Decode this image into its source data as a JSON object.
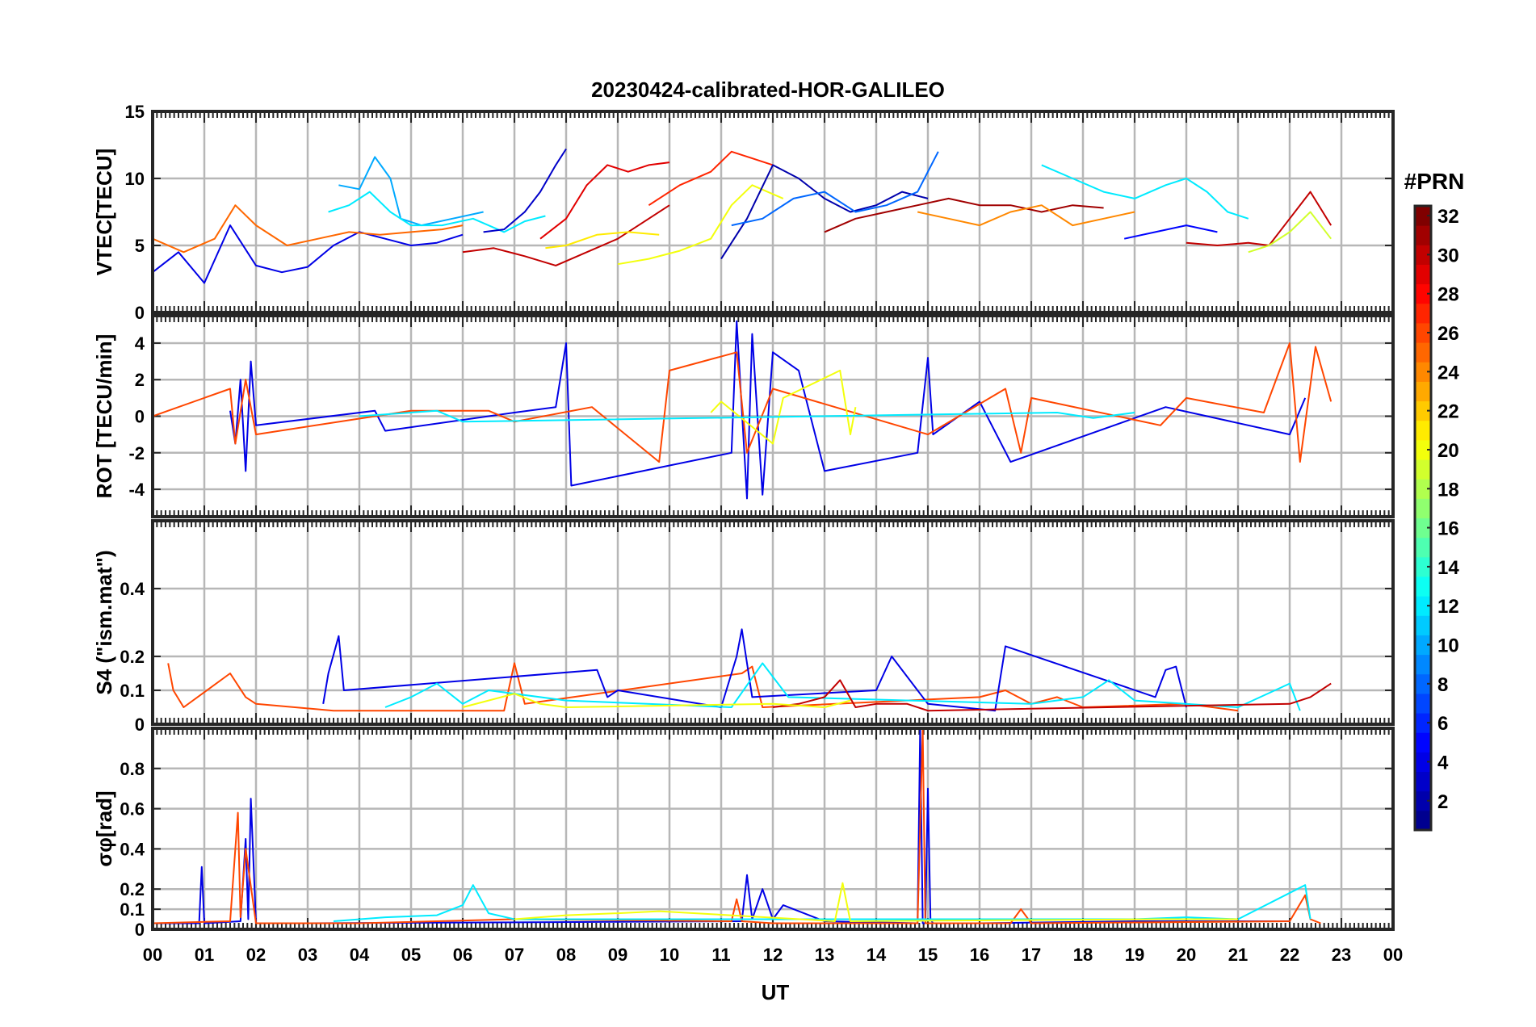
{
  "chart_data": {
    "type": "line",
    "title": "20230424-calibrated-HOR-GALILEO",
    "xlabel": "UT",
    "x_ticks": [
      "00",
      "01",
      "02",
      "03",
      "04",
      "05",
      "06",
      "07",
      "08",
      "09",
      "10",
      "11",
      "12",
      "13",
      "14",
      "15",
      "16",
      "17",
      "18",
      "19",
      "20",
      "21",
      "22",
      "23",
      "00"
    ],
    "xlim": [
      0,
      24
    ],
    "grid": true,
    "colorbar": {
      "label": "#PRN",
      "range": [
        1,
        32
      ],
      "ticks": [
        "2",
        "4",
        "6",
        "8",
        "10",
        "12",
        "14",
        "16",
        "18",
        "20",
        "22",
        "24",
        "26",
        "28",
        "30",
        "32"
      ],
      "colormap": [
        "#00008f",
        "#0000ff",
        "#0080ff",
        "#00ffff",
        "#80ff80",
        "#ffff00",
        "#ff8000",
        "#ff0000",
        "#800000"
      ]
    },
    "panels": [
      {
        "ylabel": "VTEC[TECU]",
        "ylim": [
          0,
          15
        ],
        "yticks": [
          "0",
          "5",
          "10",
          "15"
        ],
        "ytick_values": [
          0,
          5,
          10,
          15
        ],
        "series": [
          {
            "prn": 4,
            "x": [
              0.0,
              0.5,
              1.0,
              1.5,
              2.0,
              2.5,
              3.0,
              3.5,
              4.0,
              4.5,
              5.0,
              5.5,
              6.0
            ],
            "y": [
              3.0,
              4.5,
              2.2,
              6.5,
              3.5,
              3.0,
              3.4,
              5.0,
              6.0,
              5.5,
              5.0,
              5.2,
              5.8
            ]
          },
          {
            "prn": 10,
            "x": [
              3.6,
              4.0,
              4.3,
              4.6,
              4.8,
              5.2,
              5.8,
              6.4
            ],
            "y": [
              9.5,
              9.2,
              11.6,
              10.0,
              7.0,
              6.5,
              7.0,
              7.5
            ]
          },
          {
            "prn": 12,
            "x": [
              3.4,
              3.8,
              4.2,
              4.6,
              5.0,
              5.6,
              6.2,
              6.8,
              7.2,
              7.6
            ],
            "y": [
              7.5,
              8.0,
              9.0,
              7.5,
              6.5,
              6.5,
              7.0,
              6.0,
              6.8,
              7.2
            ]
          },
          {
            "prn": 3,
            "x": [
              6.4,
              6.8,
              7.2,
              7.5,
              7.8,
              8.0
            ],
            "y": [
              6.0,
              6.2,
              7.5,
              9.0,
              11.0,
              12.2
            ]
          },
          {
            "prn": 25,
            "x": [
              0.0,
              0.6,
              1.2,
              1.6,
              2.0,
              2.6,
              3.2,
              3.8,
              4.4,
              5.0,
              5.6,
              6.0
            ],
            "y": [
              5.5,
              4.5,
              5.5,
              8.0,
              6.5,
              5.0,
              5.5,
              6.0,
              5.8,
              6.0,
              6.2,
              6.5
            ]
          },
          {
            "prn": 30,
            "x": [
              6.0,
              6.6,
              7.2,
              7.8,
              8.4,
              9.0,
              9.6,
              10.0
            ],
            "y": [
              4.5,
              4.8,
              4.2,
              3.5,
              4.5,
              5.5,
              7.0,
              8.0
            ]
          },
          {
            "prn": 29,
            "x": [
              7.5,
              8.0,
              8.4,
              8.8,
              9.2,
              9.6,
              10.0
            ],
            "y": [
              5.5,
              7.0,
              9.5,
              11.0,
              10.5,
              11.0,
              11.2
            ]
          },
          {
            "prn": 21,
            "x": [
              7.6,
              8.0,
              8.6,
              9.2,
              9.8
            ],
            "y": [
              4.8,
              5.0,
              5.8,
              6.0,
              5.8
            ]
          },
          {
            "prn": 20,
            "x": [
              9.0,
              9.6,
              10.2,
              10.8,
              11.2,
              11.6,
              12.2
            ],
            "y": [
              3.6,
              4.0,
              4.6,
              5.5,
              8.0,
              9.5,
              8.5
            ]
          },
          {
            "prn": 27,
            "x": [
              9.6,
              10.2,
              10.8,
              11.2,
              11.6,
              12.0
            ],
            "y": [
              8.0,
              9.5,
              10.5,
              12.0,
              11.5,
              11.0
            ]
          },
          {
            "prn": 2,
            "x": [
              11.0,
              11.5,
              12.0,
              12.5,
              13.0,
              13.5,
              14.0,
              14.5,
              15.0
            ],
            "y": [
              4.0,
              7.0,
              11.0,
              10.0,
              8.5,
              7.5,
              8.0,
              9.0,
              8.5
            ]
          },
          {
            "prn": 8,
            "x": [
              11.2,
              11.8,
              12.4,
              13.0,
              13.6,
              14.2,
              14.8,
              15.2
            ],
            "y": [
              6.5,
              7.0,
              8.5,
              9.0,
              7.5,
              8.0,
              9.0,
              12.0
            ]
          },
          {
            "prn": 31,
            "x": [
              13.0,
              13.6,
              14.2,
              14.8,
              15.4,
              16.0,
              16.6,
              17.2,
              17.8,
              18.4
            ],
            "y": [
              6.0,
              7.0,
              7.5,
              8.0,
              8.5,
              8.0,
              8.0,
              7.5,
              8.0,
              7.8
            ]
          },
          {
            "prn": 24,
            "x": [
              14.8,
              15.4,
              16.0,
              16.6,
              17.2,
              17.8,
              18.4,
              19.0
            ],
            "y": [
              7.5,
              7.0,
              6.5,
              7.5,
              8.0,
              6.5,
              7.0,
              7.5
            ]
          },
          {
            "prn": 12,
            "x": [
              17.2,
              17.8,
              18.4,
              19.0,
              19.6,
              20.0,
              20.4,
              20.8,
              21.2
            ],
            "y": [
              11.0,
              10.0,
              9.0,
              8.5,
              9.5,
              10.0,
              9.0,
              7.5,
              7.0
            ]
          },
          {
            "prn": 5,
            "x": [
              18.8,
              19.4,
              20.0,
              20.6
            ],
            "y": [
              5.5,
              6.0,
              6.5,
              6.0
            ]
          },
          {
            "prn": 30,
            "x": [
              20.0,
              20.6,
              21.2,
              21.6,
              22.0,
              22.4,
              22.8
            ],
            "y": [
              5.2,
              5.0,
              5.2,
              5.0,
              7.0,
              9.0,
              6.5
            ]
          },
          {
            "prn": 19,
            "x": [
              21.2,
              21.6,
              22.0,
              22.4,
              22.8
            ],
            "y": [
              4.5,
              5.0,
              6.0,
              7.5,
              5.5
            ]
          }
        ]
      },
      {
        "ylabel": "ROT [TECU/min]",
        "ylim": [
          -5.5,
          5.5
        ],
        "yticks": [
          "-4",
          "-2",
          "0",
          "2",
          "4"
        ],
        "ytick_values": [
          -4,
          -2,
          0,
          2,
          4
        ],
        "series": [
          {
            "prn": 4,
            "x": [
              1.5,
              1.6,
              1.7,
              1.8,
              1.9,
              2.0,
              4.3,
              4.5,
              7.0,
              7.8,
              8.0,
              8.1,
              11.2,
              11.3,
              11.5,
              11.6,
              11.8,
              12.0,
              12.5,
              13.0,
              14.8,
              15.0,
              15.1,
              16.0,
              16.6,
              19.6,
              22.0,
              22.3
            ],
            "y": [
              0.3,
              -1.5,
              2.0,
              -3.0,
              3.0,
              -0.5,
              0.3,
              -0.8,
              0.2,
              0.5,
              4.0,
              -3.8,
              -2.0,
              5.2,
              -4.5,
              4.5,
              -4.3,
              3.5,
              2.5,
              -3.0,
              -2.0,
              3.2,
              -1.0,
              0.8,
              -2.5,
              0.5,
              -1.0,
              1.0
            ]
          },
          {
            "prn": 26,
            "x": [
              0.0,
              1.5,
              1.6,
              1.8,
              2.0,
              5.0,
              6.5,
              7.0,
              8.5,
              9.8,
              10.0,
              11.3,
              11.5,
              12.0,
              15.0,
              16.5,
              16.8,
              17.0,
              19.5,
              20.0,
              21.5,
              22.0,
              22.2,
              22.5,
              22.8
            ],
            "y": [
              0.0,
              1.5,
              -1.5,
              2.0,
              -1.0,
              0.3,
              0.3,
              -0.3,
              0.5,
              -2.5,
              2.5,
              3.5,
              -2.0,
              1.5,
              -1.0,
              1.5,
              -2.0,
              1.0,
              -0.5,
              1.0,
              0.2,
              4.0,
              -2.5,
              3.8,
              0.8
            ]
          },
          {
            "prn": 20,
            "x": [
              10.8,
              11.0,
              12.0,
              12.2,
              13.3,
              13.5,
              13.6
            ],
            "y": [
              0.2,
              0.8,
              -1.5,
              1.0,
              2.5,
              -1.0,
              0.5
            ]
          },
          {
            "prn": 12,
            "x": [
              4.0,
              5.5,
              6.0,
              17.5,
              18.2,
              19.0
            ],
            "y": [
              0.0,
              0.3,
              -0.3,
              0.2,
              -0.1,
              0.2
            ]
          }
        ]
      },
      {
        "ylabel": "S4 (\"ism.mat\")",
        "ylim": [
          0,
          0.6
        ],
        "yticks": [
          "0",
          "0.1",
          "0.2",
          "0.4"
        ],
        "ytick_values": [
          0,
          0.1,
          0.2,
          0.4
        ],
        "series": [
          {
            "prn": 26,
            "x": [
              0.3,
              0.4,
              0.6,
              1.5,
              1.8,
              2.0,
              3.5,
              6.8,
              7.0,
              7.2,
              11.4,
              11.6,
              11.8,
              16.0,
              16.5,
              17.0,
              17.5,
              18.0,
              20.0,
              21.0
            ],
            "y": [
              0.18,
              0.1,
              0.05,
              0.15,
              0.08,
              0.06,
              0.04,
              0.04,
              0.18,
              0.06,
              0.15,
              0.17,
              0.05,
              0.08,
              0.1,
              0.06,
              0.08,
              0.05,
              0.06,
              0.04
            ]
          },
          {
            "prn": 4,
            "x": [
              3.3,
              3.4,
              3.6,
              3.7,
              8.6,
              8.8,
              9.0,
              11.0,
              11.3,
              11.4,
              11.6,
              14.0,
              14.3,
              15.0,
              16.3,
              16.5,
              19.4,
              19.6,
              19.8,
              20.0
            ],
            "y": [
              0.06,
              0.15,
              0.26,
              0.1,
              0.16,
              0.08,
              0.1,
              0.05,
              0.2,
              0.28,
              0.08,
              0.1,
              0.2,
              0.06,
              0.04,
              0.23,
              0.08,
              0.16,
              0.17,
              0.05
            ]
          },
          {
            "prn": 12,
            "x": [
              4.5,
              5.0,
              5.5,
              6.0,
              6.5,
              8.0,
              11.2,
              11.8,
              12.3,
              17.0,
              18.0,
              18.5,
              19.0,
              21.0,
              22.0,
              22.2
            ],
            "y": [
              0.05,
              0.08,
              0.12,
              0.06,
              0.1,
              0.07,
              0.05,
              0.18,
              0.08,
              0.06,
              0.08,
              0.13,
              0.07,
              0.05,
              0.12,
              0.04
            ]
          },
          {
            "prn": 30,
            "x": [
              12.0,
              12.5,
              13.0,
              13.3,
              13.6,
              14.0,
              14.6,
              15.0,
              22.0,
              22.4,
              22.8
            ],
            "y": [
              0.05,
              0.06,
              0.08,
              0.13,
              0.05,
              0.06,
              0.06,
              0.04,
              0.06,
              0.08,
              0.12
            ]
          },
          {
            "prn": 20,
            "x": [
              6.0,
              6.5,
              7.0,
              7.5,
              8.0,
              12.0,
              13.0,
              13.5
            ],
            "y": [
              0.05,
              0.07,
              0.09,
              0.06,
              0.05,
              0.06,
              0.05,
              0.07
            ]
          }
        ]
      },
      {
        "ylabel": "σφ[rad]",
        "ylim": [
          0,
          1.0
        ],
        "yticks": [
          "0",
          "0.1",
          "0.2",
          "0.4",
          "0.6",
          "0.8"
        ],
        "ytick_values": [
          0,
          0.1,
          0.2,
          0.4,
          0.6,
          0.8
        ],
        "series": [
          {
            "prn": 4,
            "x": [
              0.0,
              0.9,
              0.95,
              1.0,
              1.7,
              1.8,
              1.85,
              1.9,
              2.0,
              3.0,
              11.4,
              11.5,
              11.6,
              11.8,
              12.0,
              12.2,
              13.0,
              14.8,
              14.85,
              14.9,
              14.95,
              15.0,
              15.05,
              15.1,
              16.0,
              19.0,
              22.0
            ],
            "y": [
              0.03,
              0.03,
              0.31,
              0.03,
              0.04,
              0.45,
              0.05,
              0.65,
              0.03,
              0.03,
              0.04,
              0.27,
              0.05,
              0.2,
              0.05,
              0.12,
              0.04,
              0.03,
              1.0,
              0.03,
              0.03,
              0.7,
              0.05,
              0.03,
              0.03,
              0.04,
              0.04
            ]
          },
          {
            "prn": 26,
            "x": [
              0.0,
              1.5,
              1.65,
              1.7,
              1.8,
              2.0,
              4.0,
              7.0,
              11.2,
              11.3,
              11.4,
              12.0,
              14.8,
              14.9,
              14.95,
              15.0,
              16.6,
              16.8,
              17.0,
              22.0,
              22.3,
              22.4,
              22.6
            ],
            "y": [
              0.03,
              0.04,
              0.58,
              0.06,
              0.4,
              0.03,
              0.03,
              0.05,
              0.04,
              0.15,
              0.04,
              0.03,
              0.03,
              1.0,
              0.03,
              0.03,
              0.03,
              0.1,
              0.03,
              0.04,
              0.17,
              0.05,
              0.03
            ]
          },
          {
            "prn": 12,
            "x": [
              3.5,
              4.5,
              5.5,
              6.0,
              6.2,
              6.5,
              7.0,
              19.0,
              20.0,
              21.0,
              22.3,
              22.4
            ],
            "y": [
              0.04,
              0.06,
              0.07,
              0.12,
              0.22,
              0.08,
              0.05,
              0.05,
              0.06,
              0.05,
              0.22,
              0.05
            ]
          },
          {
            "prn": 20,
            "x": [
              7.0,
              8.0,
              9.0,
              9.8,
              13.2,
              13.35,
              13.5,
              19.5,
              21.0
            ],
            "y": [
              0.05,
              0.07,
              0.08,
              0.09,
              0.04,
              0.23,
              0.04,
              0.05,
              0.05
            ]
          }
        ]
      }
    ]
  }
}
